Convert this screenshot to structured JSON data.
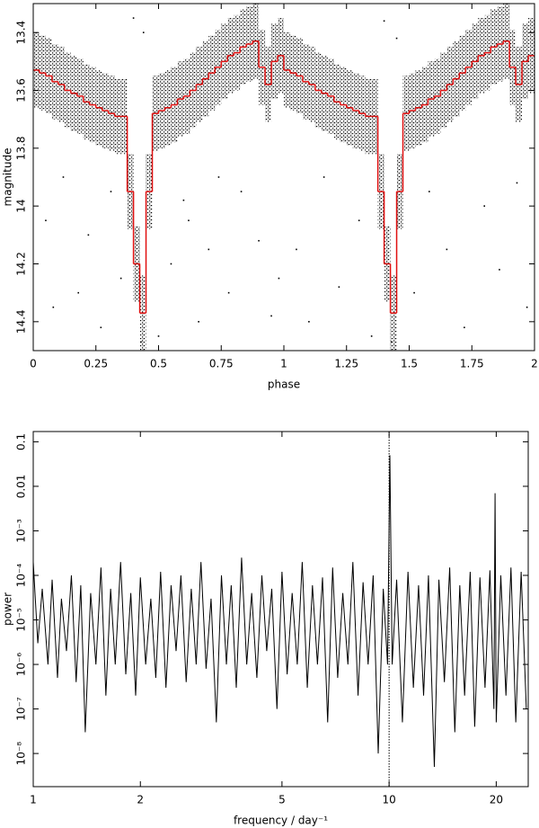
{
  "chart_data": [
    {
      "type": "step",
      "xlabel": "phase",
      "ylabel": "magnitude",
      "xlim": [
        0,
        2
      ],
      "ylim": [
        13.3,
        14.5
      ],
      "y_inverted": true,
      "xticks": [
        0,
        0.25,
        0.5,
        0.75,
        1,
        1.25,
        1.5,
        1.75,
        2
      ],
      "yticks": [
        13.4,
        13.6,
        13.8,
        14,
        14.2,
        14.4
      ],
      "bin_width": 0.025,
      "color": "#e01010",
      "point_color": "#000000",
      "cloud_halfwidth": 0.13,
      "x": [
        0.0125,
        0.0375,
        0.0625,
        0.0875,
        0.1125,
        0.1375,
        0.1625,
        0.1875,
        0.2125,
        0.2375,
        0.2625,
        0.2875,
        0.3125,
        0.3375,
        0.3625,
        0.3875,
        0.4125,
        0.4375,
        0.4625,
        0.4875,
        0.5125,
        0.5375,
        0.5625,
        0.5875,
        0.6125,
        0.6375,
        0.6625,
        0.6875,
        0.7125,
        0.7375,
        0.7625,
        0.7875,
        0.8125,
        0.8375,
        0.8625,
        0.8875,
        0.9125,
        0.9375,
        0.9625,
        0.9875,
        1.0125,
        1.0375,
        1.0625,
        1.0875,
        1.1125,
        1.1375,
        1.1625,
        1.1875,
        1.2125,
        1.2375,
        1.2625,
        1.2875,
        1.3125,
        1.3375,
        1.3625,
        1.3875,
        1.4125,
        1.4375,
        1.4625,
        1.4875,
        1.5125,
        1.5375,
        1.5625,
        1.5875,
        1.6125,
        1.6375,
        1.6625,
        1.6875,
        1.7125,
        1.7375,
        1.7625,
        1.7875,
        1.8125,
        1.8375,
        1.8625,
        1.8875,
        1.9125,
        1.9375,
        1.9625,
        1.9875
      ],
      "values": [
        13.53,
        13.54,
        13.55,
        13.57,
        13.58,
        13.6,
        13.61,
        13.62,
        13.64,
        13.65,
        13.66,
        13.67,
        13.68,
        13.69,
        13.69,
        13.95,
        14.2,
        14.37,
        13.95,
        13.68,
        13.67,
        13.66,
        13.65,
        13.63,
        13.62,
        13.6,
        13.58,
        13.56,
        13.54,
        13.52,
        13.5,
        13.48,
        13.47,
        13.45,
        13.44,
        13.43,
        13.52,
        13.58,
        13.5,
        13.48,
        13.53,
        13.54,
        13.55,
        13.57,
        13.58,
        13.6,
        13.61,
        13.62,
        13.64,
        13.65,
        13.66,
        13.67,
        13.68,
        13.69,
        13.69,
        13.95,
        14.2,
        14.37,
        13.95,
        13.68,
        13.67,
        13.66,
        13.65,
        13.63,
        13.62,
        13.6,
        13.58,
        13.56,
        13.54,
        13.52,
        13.5,
        13.48,
        13.47,
        13.45,
        13.44,
        13.43,
        13.52,
        13.58,
        13.5,
        13.48
      ],
      "points_x": [
        0.05,
        0.12,
        0.18,
        0.22,
        0.27,
        0.31,
        0.35,
        0.08,
        0.55,
        0.6,
        0.66,
        0.7,
        0.78,
        0.83,
        0.9,
        0.95,
        0.5,
        0.62,
        0.74,
        0.98,
        1.05,
        1.1,
        1.16,
        1.22,
        1.3,
        1.35,
        1.52,
        1.58,
        1.65,
        1.72,
        1.8,
        1.86,
        1.93,
        1.97,
        0.43,
        1.43,
        0.4,
        1.4,
        0.44,
        1.45
      ],
      "points_y": [
        14.05,
        13.9,
        14.3,
        14.1,
        14.42,
        13.95,
        14.25,
        14.35,
        14.2,
        13.98,
        14.4,
        14.15,
        14.3,
        13.95,
        14.12,
        14.38,
        14.45,
        14.05,
        13.9,
        14.25,
        14.15,
        14.4,
        13.9,
        14.28,
        14.05,
        14.45,
        14.3,
        13.95,
        14.15,
        14.42,
        14.0,
        14.22,
        13.92,
        14.35,
        14.47,
        14.47,
        13.35,
        13.36,
        13.4,
        13.42
      ]
    },
    {
      "type": "line",
      "xlabel": "frequency / day⁻¹",
      "ylabel": "power",
      "log_x": true,
      "log_y": true,
      "xlim": [
        1,
        24.6
      ],
      "ylim": [
        1.8e-09,
        0.17
      ],
      "xticks": [
        1,
        2,
        5,
        10,
        20
      ],
      "yticks": [
        0.1,
        0.01,
        {
          "value": 0.001,
          "label": "10⁻³"
        },
        {
          "value": 0.0001,
          "label": "10⁻⁴"
        },
        {
          "value": 1e-05,
          "label": "10⁻⁵"
        },
        {
          "value": 1e-06,
          "label": "10⁻⁶"
        },
        {
          "value": 1e-07,
          "label": "10⁻⁷"
        },
        {
          "value": 1e-08,
          "label": "10⁻⁸"
        }
      ],
      "color": "#000000",
      "vline": 10,
      "x": [
        1,
        1.03,
        1.06,
        1.1,
        1.13,
        1.17,
        1.2,
        1.24,
        1.28,
        1.32,
        1.36,
        1.4,
        1.45,
        1.5,
        1.55,
        1.6,
        1.65,
        1.7,
        1.76,
        1.82,
        1.88,
        1.94,
        2,
        2.07,
        2.14,
        2.21,
        2.28,
        2.36,
        2.44,
        2.52,
        2.6,
        2.69,
        2.78,
        2.87,
        2.96,
        3.06,
        3.16,
        3.27,
        3.38,
        3.49,
        3.6,
        3.72,
        3.85,
        3.98,
        4.11,
        4.25,
        4.39,
        4.53,
        4.68,
        4.84,
        5,
        5.17,
        5.34,
        5.52,
        5.7,
        5.89,
        6.09,
        6.29,
        6.5,
        6.72,
        6.94,
        7.17,
        7.41,
        7.66,
        7.91,
        8.18,
        8.45,
        8.73,
        9.02,
        9.32,
        9.63,
        9.9,
        10.05,
        10.2,
        10.5,
        10.9,
        11.3,
        11.7,
        12.1,
        12.5,
        12.9,
        13.4,
        13.8,
        14.3,
        14.8,
        15.3,
        15.8,
        16.3,
        16.9,
        17.4,
        18,
        18.6,
        19.2,
        19.7,
        19.85,
        20,
        20.6,
        21.3,
        22,
        22.7,
        23.5,
        24.3
      ],
      "values": [
        0.0002,
        3e-06,
        5e-05,
        1e-06,
        8e-05,
        5e-07,
        3e-05,
        2e-06,
        0.0001,
        4e-07,
        6e-05,
        3e-08,
        4e-05,
        1e-06,
        0.00015,
        2e-07,
        5e-05,
        1e-06,
        0.0002,
        6e-07,
        4e-05,
        2e-07,
        9e-05,
        1e-06,
        3e-05,
        5e-07,
        0.00012,
        3e-07,
        6e-05,
        2e-06,
        0.0001,
        4e-07,
        5e-05,
        1e-06,
        0.0002,
        8e-07,
        3e-05,
        5e-08,
        0.0001,
        1e-06,
        6e-05,
        3e-07,
        0.00025,
        1e-06,
        4e-05,
        5e-07,
        0.0001,
        2e-06,
        5e-05,
        1e-07,
        0.00012,
        6e-07,
        4e-05,
        1e-06,
        0.0002,
        3e-07,
        6e-05,
        1e-06,
        9e-05,
        5e-08,
        0.00015,
        5e-07,
        4e-05,
        1e-06,
        0.0002,
        2e-07,
        7e-05,
        1e-06,
        0.0001,
        1e-08,
        5e-05,
        1e-06,
        0.05,
        1e-06,
        8e-05,
        5e-08,
        0.00012,
        3e-07,
        6e-05,
        2e-07,
        0.0001,
        5e-09,
        8e-05,
        4e-07,
        0.00015,
        3e-08,
        6e-05,
        2e-07,
        0.00012,
        4e-08,
        9e-05,
        3e-07,
        0.00013,
        1e-07,
        0.007,
        5e-08,
        0.0001,
        2e-07,
        0.00015,
        5e-08,
        0.00012,
        1e-07
      ]
    }
  ]
}
